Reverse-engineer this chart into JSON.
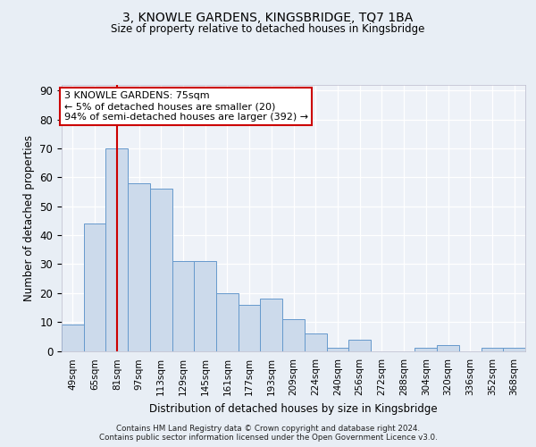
{
  "title1": "3, KNOWLE GARDENS, KINGSBRIDGE, TQ7 1BA",
  "title2": "Size of property relative to detached houses in Kingsbridge",
  "xlabel": "Distribution of detached houses by size in Kingsbridge",
  "ylabel": "Number of detached properties",
  "categories": [
    "49sqm",
    "65sqm",
    "81sqm",
    "97sqm",
    "113sqm",
    "129sqm",
    "145sqm",
    "161sqm",
    "177sqm",
    "193sqm",
    "209sqm",
    "224sqm",
    "240sqm",
    "256sqm",
    "272sqm",
    "288sqm",
    "304sqm",
    "320sqm",
    "336sqm",
    "352sqm",
    "368sqm"
  ],
  "values": [
    9,
    44,
    70,
    58,
    56,
    31,
    31,
    20,
    16,
    18,
    11,
    6,
    1,
    4,
    0,
    0,
    1,
    2,
    0,
    1,
    1
  ],
  "bar_color": "#ccdaeb",
  "bar_edge_color": "#6699cc",
  "vline_x": 2,
  "vline_color": "#cc0000",
  "annotation_text": "3 KNOWLE GARDENS: 75sqm\n← 5% of detached houses are smaller (20)\n94% of semi-detached houses are larger (392) →",
  "annotation_box_color": "white",
  "annotation_box_edge": "#cc0000",
  "ylim": [
    0,
    92
  ],
  "yticks": [
    0,
    10,
    20,
    30,
    40,
    50,
    60,
    70,
    80,
    90
  ],
  "footer": "Contains HM Land Registry data © Crown copyright and database right 2024.\nContains public sector information licensed under the Open Government Licence v3.0.",
  "bg_color": "#e8eef5",
  "plot_bg_color": "#eef2f8"
}
